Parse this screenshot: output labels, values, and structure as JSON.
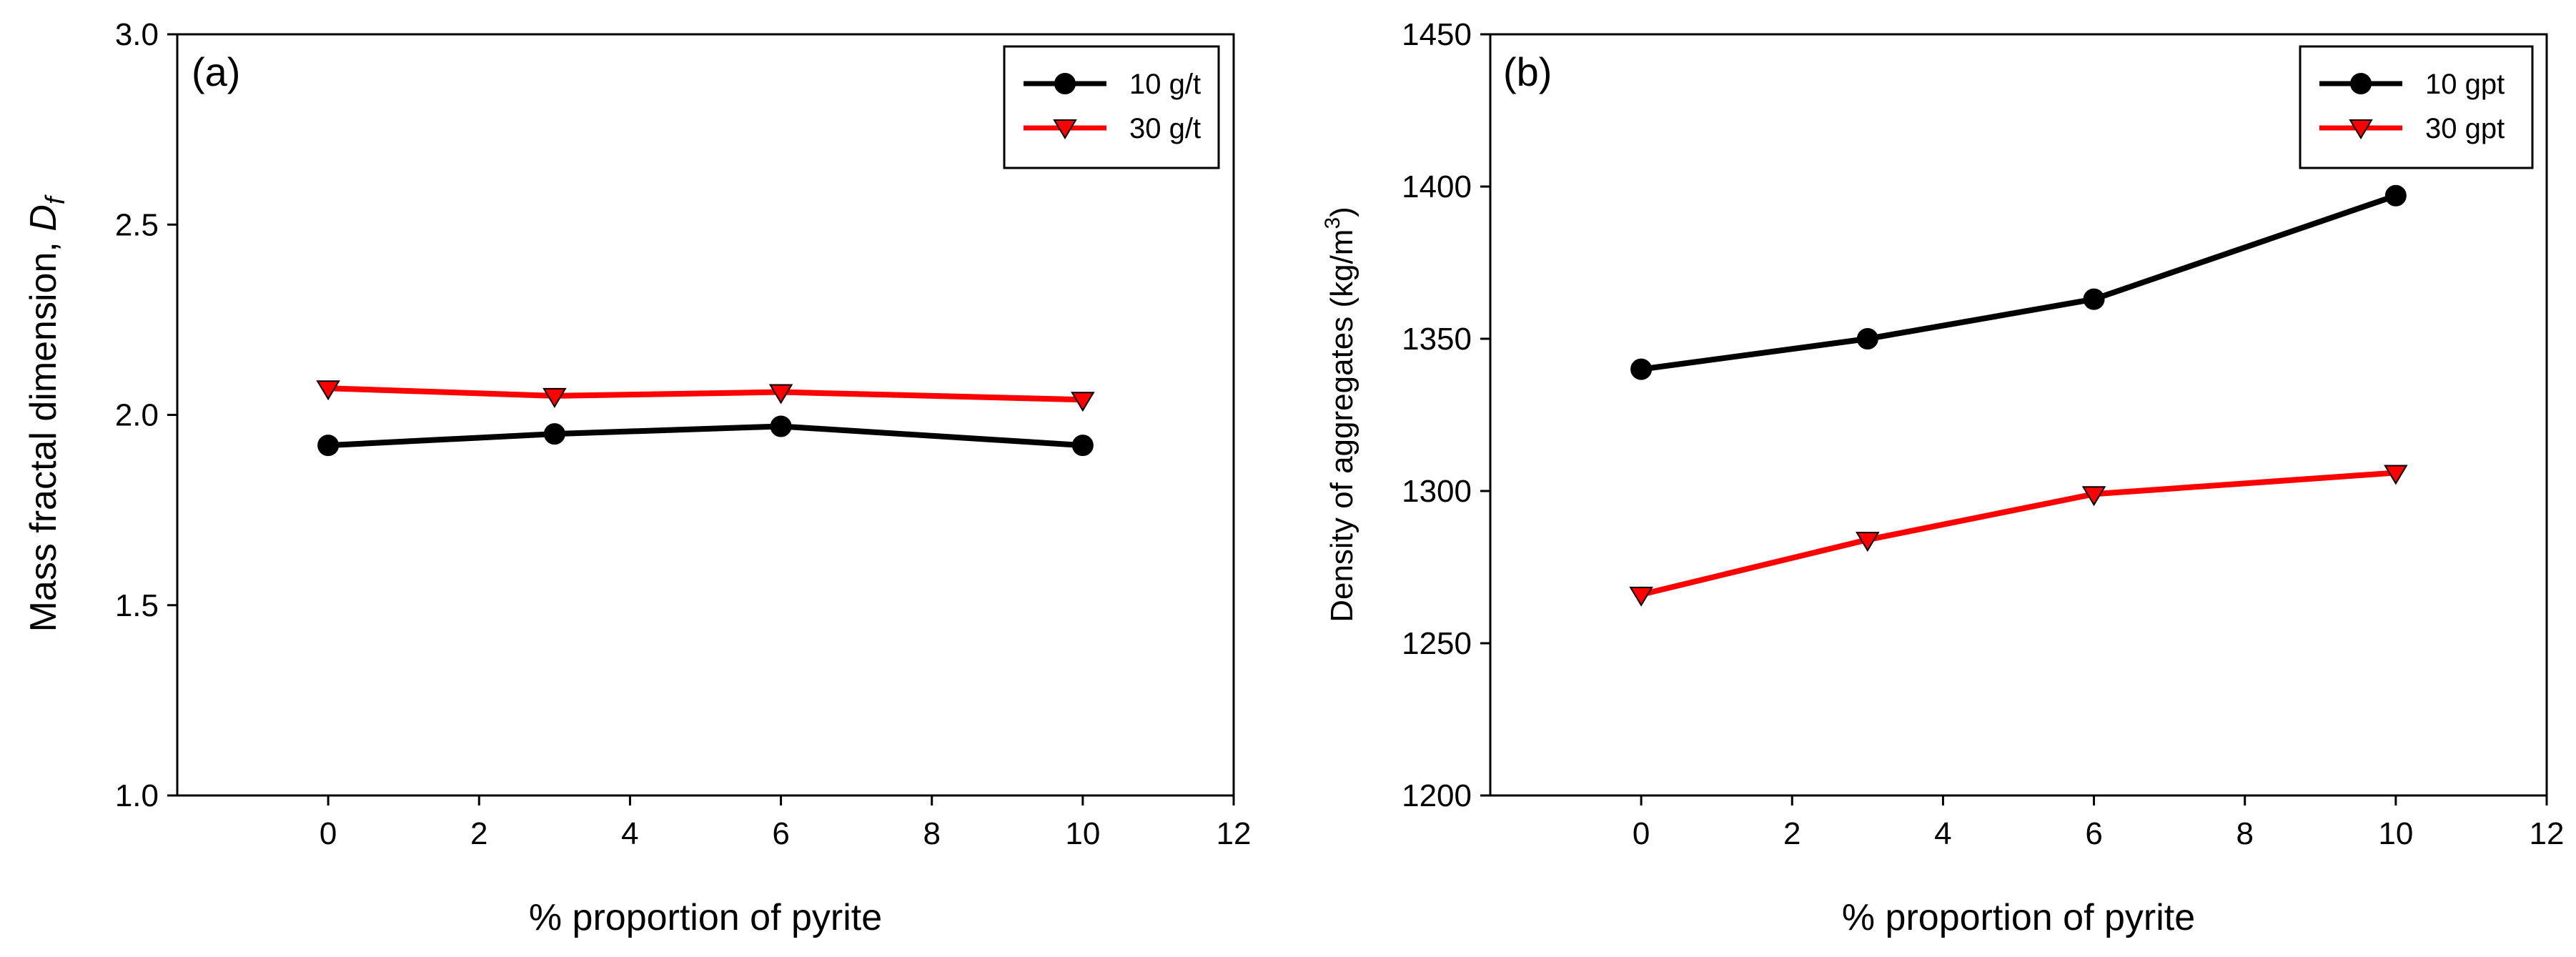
{
  "chart_data": [
    {
      "type": "line",
      "panel_label": "(a)",
      "xlabel": "% proportion of pyrite",
      "ylabel_main": "Mass fractal dimension, ",
      "ylabel_sym": "D",
      "ylabel_sub": "f",
      "xlim": [
        -2,
        12
      ],
      "ylim": [
        1.0,
        3.0
      ],
      "xticks": [
        "0",
        "2",
        "4",
        "6",
        "8",
        "10",
        "12"
      ],
      "xtick_values": [
        0,
        2,
        4,
        6,
        8,
        10,
        12
      ],
      "yticks": [
        "1.0",
        "1.5",
        "2.0",
        "2.5",
        "3.0"
      ],
      "ytick_values": [
        1.0,
        1.5,
        2.0,
        2.5,
        3.0
      ],
      "x": [
        0,
        3,
        6,
        10
      ],
      "series": [
        {
          "name": "10 g/t",
          "values": [
            1.92,
            1.95,
            1.97,
            1.92
          ],
          "color": "#000000",
          "marker": "circle",
          "marker_fill": "#000000"
        },
        {
          "name": "30 g/t",
          "values": [
            2.07,
            2.05,
            2.06,
            2.04
          ],
          "color": "#ff0000",
          "marker": "triangle-down",
          "marker_fill": "#ff0000"
        }
      ],
      "legend": "top-right"
    },
    {
      "type": "line",
      "panel_label": "(b)",
      "xlabel": "% proportion of pyrite",
      "ylabel_main": "Density of aggregates (kg/m",
      "ylabel_sup": "3",
      "ylabel_end": ")",
      "xlim": [
        -2,
        12
      ],
      "ylim": [
        1200,
        1450
      ],
      "xticks": [
        "0",
        "2",
        "4",
        "6",
        "8",
        "10",
        "12"
      ],
      "xtick_values": [
        0,
        2,
        4,
        6,
        8,
        10,
        12
      ],
      "yticks": [
        "1200",
        "1250",
        "1300",
        "1350",
        "1400",
        "1450"
      ],
      "ytick_values": [
        1200,
        1250,
        1300,
        1350,
        1400,
        1450
      ],
      "x": [
        0,
        3,
        6,
        10
      ],
      "series": [
        {
          "name": "10 gpt",
          "values": [
            1340,
            1350,
            1363,
            1397
          ],
          "color": "#000000",
          "marker": "circle",
          "marker_fill": "#000000"
        },
        {
          "name": "30 gpt",
          "values": [
            1266,
            1284,
            1299,
            1306
          ],
          "color": "#ff0000",
          "marker": "triangle-down",
          "marker_fill": "#ff0000"
        }
      ],
      "legend": "top-right"
    }
  ]
}
